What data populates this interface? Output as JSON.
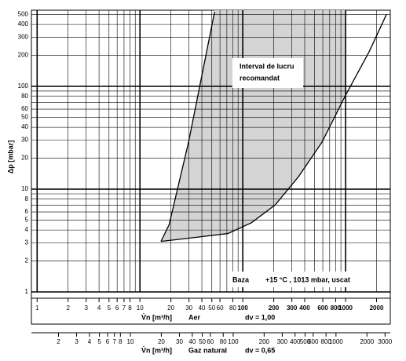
{
  "chart_data": {
    "type": "line",
    "y_label": "Δp [mbar]",
    "x_label": "V̇n [m³/h]",
    "x_axis_name": "Aer",
    "x_axis_note": "dv = 1,00",
    "x2_label": "V̇n [m³/h]",
    "x2_axis_name": "Gaz natural",
    "x2_axis_note": "dv = 0,65",
    "annotations": [
      "Interval de lucru",
      "recomandat",
      "Baza",
      "+15 °C , 1013 mbar, uscat"
    ],
    "log_x": true,
    "log_y": true,
    "grid": true,
    "ylim": [
      1,
      550
    ],
    "yticks": [
      1,
      2,
      3,
      4,
      5,
      6,
      8,
      10,
      20,
      30,
      40,
      50,
      60,
      80,
      100,
      200,
      300,
      400,
      500
    ],
    "y_grid": [
      1,
      2,
      3,
      4,
      5,
      6,
      7,
      8,
      9,
      10,
      20,
      30,
      40,
      50,
      60,
      70,
      80,
      90,
      100,
      200,
      300,
      400,
      500
    ],
    "xlim": [
      0.88,
      2720
    ],
    "xticks": [
      1,
      2,
      3,
      4,
      5,
      6,
      7,
      8,
      10,
      20,
      30,
      40,
      50,
      60,
      80,
      100,
      200,
      300,
      400,
      600,
      800,
      1000,
      2000
    ],
    "x_grid": [
      1,
      2,
      3,
      4,
      5,
      6,
      7,
      8,
      9,
      10,
      20,
      30,
      40,
      50,
      60,
      70,
      80,
      90,
      100,
      200,
      300,
      400,
      500,
      600,
      700,
      800,
      900,
      1000,
      2000
    ],
    "x2lim": [
      1.09,
      3375
    ],
    "x2ticks": [
      2,
      3,
      4,
      5,
      6,
      7,
      8,
      10,
      20,
      30,
      40,
      50,
      60,
      80,
      100,
      200,
      300,
      400,
      500,
      600,
      800,
      1000,
      2000,
      3000
    ],
    "region_right_x": 1000,
    "region_color": "#d4d4d4",
    "series": [
      {
        "color": "#000000",
        "x": [
          16,
          19.2,
          29.7,
          53.2
        ],
        "values": [
          3.1,
          4.5,
          28.7,
          531
        ]
      },
      {
        "color": "#000000",
        "x": [
          16,
          35.4,
          71.6,
          121,
          206,
          348,
          590,
          1000,
          1694,
          2495
        ],
        "values": [
          3.1,
          3.4,
          3.7,
          4.7,
          7.0,
          13.2,
          28.7,
          82,
          217,
          500
        ]
      }
    ]
  }
}
